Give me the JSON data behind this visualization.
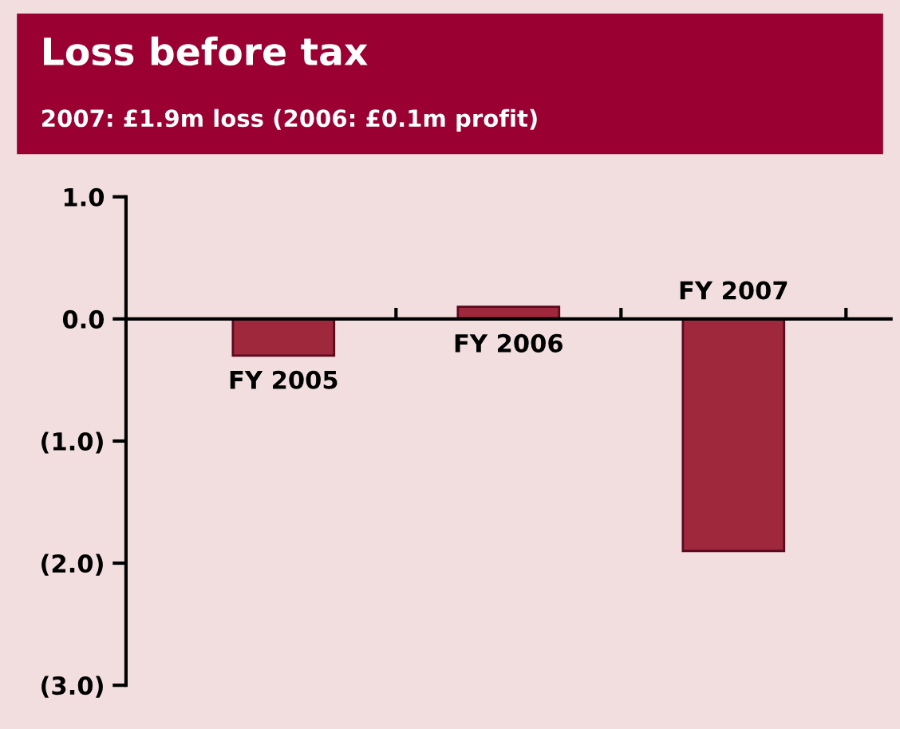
{
  "chart_data": {
    "type": "bar",
    "title": "Loss before tax",
    "subtitle": "2007: £1.9m loss (2006: £0.1m profit)",
    "categories": [
      "FY 2005",
      "FY 2006",
      "FY 2007"
    ],
    "values": [
      -0.3,
      0.1,
      -1.9
    ],
    "color": "#a0283c",
    "ylim": [
      -3,
      1
    ],
    "yticks": [
      {
        "value": 1,
        "label": "1.0"
      },
      {
        "value": 0,
        "label": "0.0"
      },
      {
        "value": -1,
        "label": "(1.0)"
      },
      {
        "value": -2,
        "label": "(2.0)"
      },
      {
        "value": -3,
        "label": "(3.0)"
      }
    ],
    "legend": false
  }
}
